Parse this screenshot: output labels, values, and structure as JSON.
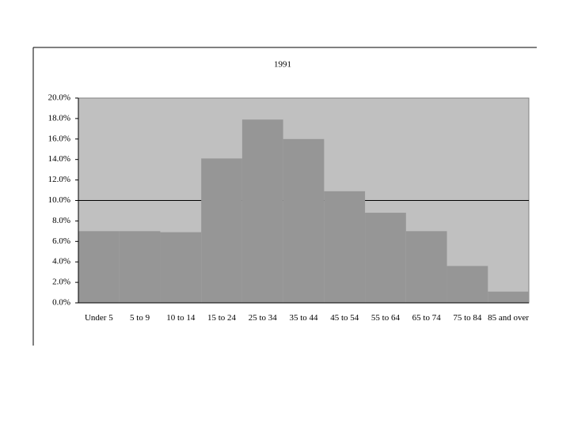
{
  "chart_data": {
    "type": "bar",
    "title": "1991",
    "categories": [
      "Under 5",
      "5 to 9",
      "10 to 14",
      "15 to 24",
      "25 to 34",
      "35 to 44",
      "45 to 54",
      "55 to 64",
      "65 to 74",
      "75 to 84",
      "85 and over"
    ],
    "values": [
      7.0,
      7.0,
      6.9,
      14.1,
      17.9,
      16.0,
      10.9,
      8.8,
      7.0,
      3.6,
      1.1
    ],
    "color": "#969696",
    "plot_background": "#c0c0c0",
    "ylim": [
      0,
      20
    ],
    "yticks": [
      {
        "value": 0,
        "label": "0.0%"
      },
      {
        "value": 2,
        "label": "2.0%"
      },
      {
        "value": 4,
        "label": "4.0%"
      },
      {
        "value": 6,
        "label": "6.0%"
      },
      {
        "value": 8,
        "label": "8.0%"
      },
      {
        "value": 10,
        "label": "10.0%"
      },
      {
        "value": 12,
        "label": "12.0%"
      },
      {
        "value": 14,
        "label": "14.0%"
      },
      {
        "value": 16,
        "label": "16.0%"
      },
      {
        "value": 18,
        "label": "18.0%"
      },
      {
        "value": 20,
        "label": "20.0%"
      }
    ],
    "hlines": [
      10
    ]
  }
}
